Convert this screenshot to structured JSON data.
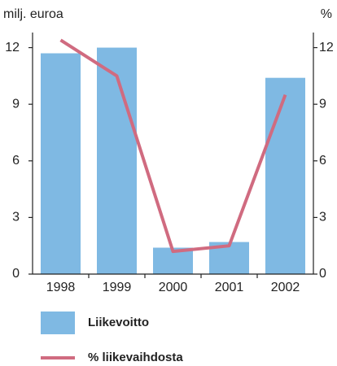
{
  "chart_data": {
    "type": "bar_line",
    "y_label": "milj. euroa",
    "y2_label": "%",
    "categories": [
      "1998",
      "1999",
      "2000",
      "2001",
      "2002"
    ],
    "series": [
      {
        "name": "Liikevoitto",
        "color": "#7fb9e3",
        "type": "bar",
        "values": [
          11.7,
          12.0,
          1.4,
          1.7,
          10.4
        ]
      },
      {
        "name": "% liikevaihdosta",
        "color": "#d06b80",
        "type": "line",
        "axis": "y2",
        "values": [
          12.4,
          10.5,
          1.2,
          1.5,
          9.5
        ]
      }
    ],
    "ylim": [
      0,
      12.8
    ],
    "yticks": [
      0,
      3,
      6,
      9,
      12
    ],
    "y2lim": [
      0,
      12.8
    ],
    "y2ticks": [
      0,
      3,
      6,
      9,
      12
    ]
  }
}
